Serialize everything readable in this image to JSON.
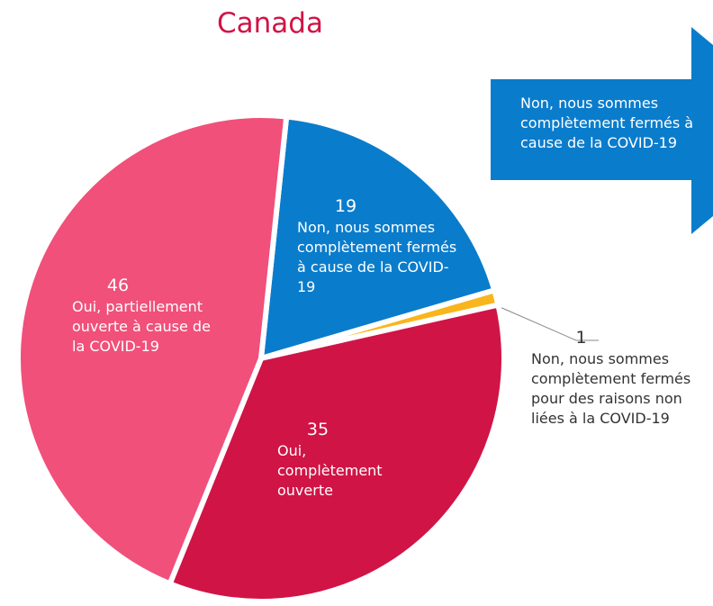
{
  "chart_data": {
    "type": "pie",
    "title": "Canada",
    "categories": [
      "Non, nous sommes complètement fermés à cause de la COVID-19",
      "Non, nous sommes complètement fermés pour des raisons non liées à la COVID-19",
      "Oui, complètement ouverte",
      "Oui, partiellement ouverte à cause de la COVID-19"
    ],
    "values": [
      19,
      1,
      35,
      46
    ],
    "colors": [
      "#0a7ccc",
      "#f9b51c",
      "#d01446",
      "#f0507a"
    ],
    "annotation": "Non, nous sommes complètement fermés à cause de la COVID-19"
  }
}
